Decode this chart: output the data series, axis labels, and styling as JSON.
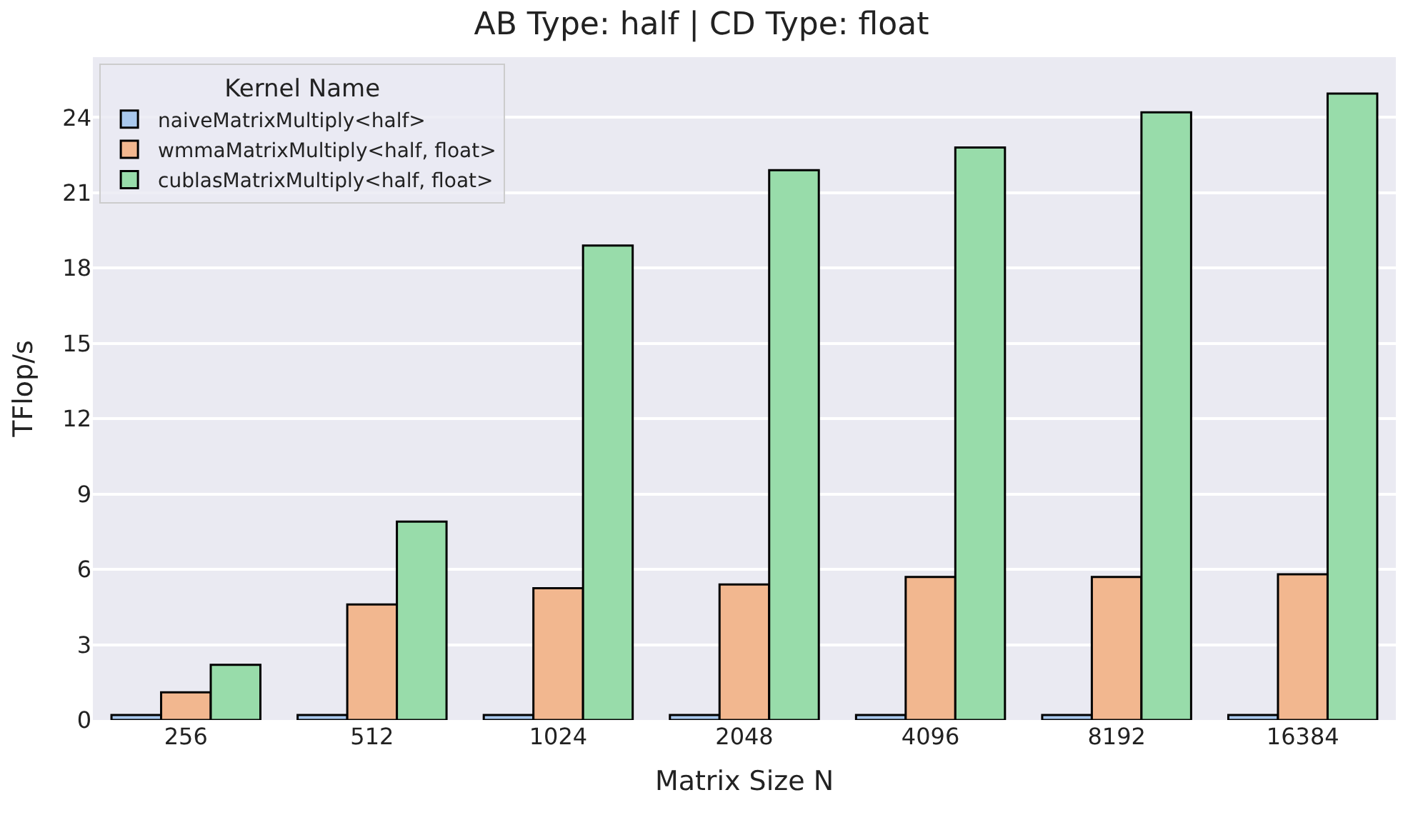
{
  "chart_data": {
    "type": "bar",
    "title": "AB Type: half | CD Type: float",
    "xlabel": "Matrix Size N",
    "ylabel": "TFlop/s",
    "legend_title": "Kernel Name",
    "categories": [
      "256",
      "512",
      "1024",
      "2048",
      "4096",
      "8192",
      "16384"
    ],
    "series": [
      {
        "name": "naiveMatrixMultiply<half>",
        "color": "#a9c8ed",
        "values": [
          0.2,
          0.2,
          0.2,
          0.2,
          0.2,
          0.2,
          0.2
        ]
      },
      {
        "name": "wmmaMatrixMultiply<half, float>",
        "color": "#f2b78f",
        "values": [
          1.1,
          4.6,
          5.25,
          5.4,
          5.7,
          5.7,
          5.8
        ]
      },
      {
        "name": "cublasMatrixMultiply<half, float>",
        "color": "#98dcaa",
        "values": [
          2.2,
          7.9,
          18.9,
          21.9,
          22.8,
          24.2,
          24.95
        ]
      }
    ],
    "ylim": [
      0,
      26.4
    ],
    "yticks": [
      0,
      3,
      6,
      9,
      12,
      15,
      18,
      21,
      24
    ],
    "grid": "y",
    "legend": "top left"
  }
}
